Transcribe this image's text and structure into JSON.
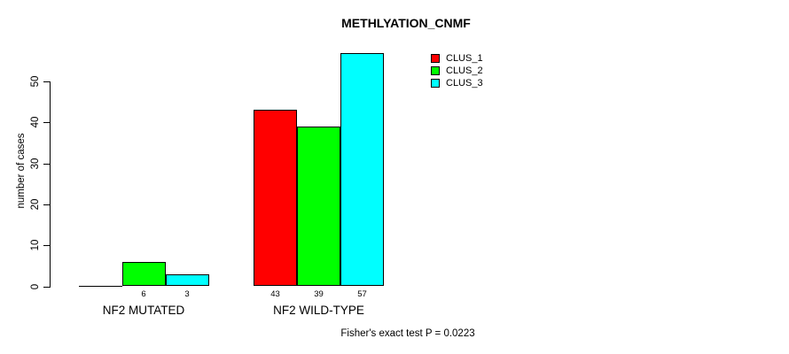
{
  "chart_data": {
    "type": "bar",
    "title": "METHLYATION_CNMF",
    "ylabel": "number of cases",
    "xlabel": "",
    "categories": [
      "NF2 MUTATED",
      "NF2 WILD-TYPE"
    ],
    "series": [
      {
        "name": "CLUS_1",
        "color": "#ff0000",
        "values": [
          0,
          43
        ]
      },
      {
        "name": "CLUS_2",
        "color": "#00ff00",
        "values": [
          6,
          39
        ]
      },
      {
        "name": "CLUS_3",
        "color": "#00ffff",
        "values": [
          3,
          57
        ]
      }
    ],
    "bar_value_labels": {
      "shown": true,
      "zero_values_hidden": true
    },
    "yticks": [
      0,
      10,
      20,
      30,
      40,
      50
    ],
    "ylim": [
      0,
      57
    ],
    "grid": false,
    "legend": {
      "entries": [
        "CLUS_1",
        "CLUS_2",
        "CLUS_3"
      ],
      "position": "top-center-right"
    },
    "annotation": "Fisher's exact test P = 0.0223"
  }
}
